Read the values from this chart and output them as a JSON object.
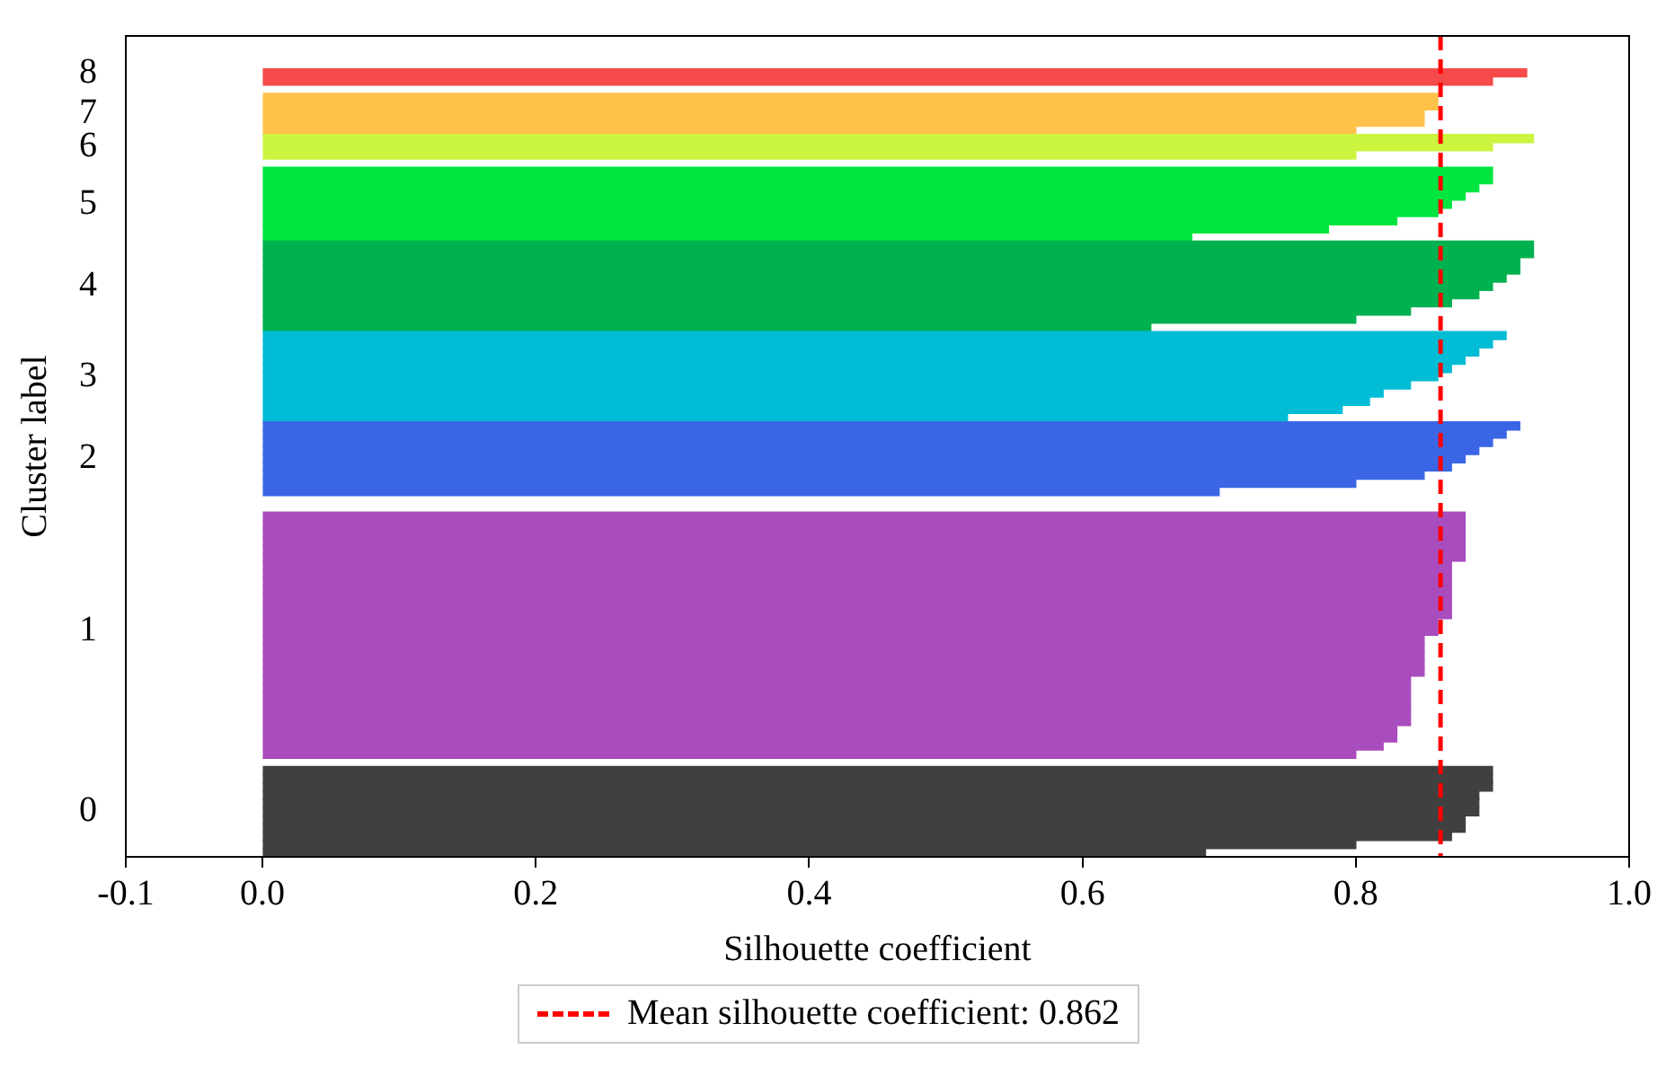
{
  "chart_data": {
    "type": "bar",
    "orientation": "horizontal",
    "xlabel": "Silhouette coefficient",
    "ylabel": "Cluster label",
    "categories": [
      null,
      null,
      null,
      null,
      "8",
      null,
      null,
      null,
      null,
      "7",
      null,
      null,
      null,
      "6",
      null,
      null,
      null,
      null,
      null,
      null,
      "5",
      null,
      null,
      null,
      null,
      null,
      null,
      null,
      null,
      null,
      "4",
      null,
      null,
      null,
      null,
      null,
      null,
      null,
      null,
      null,
      null,
      "3",
      null,
      null,
      null,
      null,
      null,
      null,
      null,
      null,
      null,
      "2",
      null,
      null,
      null,
      null,
      null,
      null,
      null,
      null,
      null,
      null,
      null,
      null,
      null,
      null,
      null,
      null,
      null,
      null,
      null,
      null,
      "1",
      null,
      null,
      null,
      null,
      null,
      null,
      null,
      null,
      null,
      null,
      null,
      null,
      null,
      null,
      null,
      null,
      null,
      null,
      null,
      null,
      null,
      "0",
      null,
      null,
      null,
      null,
      null
    ],
    "values": [
      null,
      null,
      null,
      null,
      0.925,
      0.9,
      null,
      0.86,
      0.86,
      0.85,
      0.85,
      0.8,
      0.93,
      0.9,
      0.8,
      null,
      0.9,
      0.9,
      0.89,
      0.88,
      0.87,
      0.86,
      0.83,
      0.78,
      0.68,
      0.93,
      0.93,
      0.92,
      0.92,
      0.91,
      0.9,
      0.89,
      0.87,
      0.84,
      0.8,
      0.65,
      0.91,
      0.9,
      0.89,
      0.88,
      0.87,
      0.86,
      0.84,
      0.82,
      0.81,
      0.79,
      0.75,
      0.92,
      0.91,
      0.9,
      0.89,
      0.88,
      0.87,
      0.85,
      0.8,
      0.7,
      null,
      null,
      0.88,
      0.88,
      0.88,
      0.88,
      0.88,
      0.88,
      0.87,
      0.87,
      0.87,
      0.87,
      0.87,
      0.87,
      0.87,
      0.86,
      0.86,
      0.85,
      0.85,
      0.85,
      0.85,
      0.85,
      0.84,
      0.84,
      0.84,
      0.84,
      0.84,
      0.84,
      0.83,
      0.83,
      0.82,
      0.8,
      null,
      0.9,
      0.9,
      0.9,
      0.89,
      0.89,
      0.89,
      0.88,
      0.88,
      0.87,
      0.8,
      0.69
    ],
    "colors": [
      "#f54a4a",
      "#f54a4a",
      "#f54a4a",
      "#f54a4a",
      "#f54a4a",
      "#f54a4a",
      "#ffc14a",
      "#ffc14a",
      "#ffc14a",
      "#ffc14a",
      "#ffc14a",
      "#ffc14a",
      "#ccf540",
      "#ccf540",
      "#ccf540",
      "#ccf540",
      "#00e540",
      "#00e540",
      "#00e540",
      "#00e540",
      "#00e540",
      "#00e540",
      "#00e540",
      "#00e540",
      "#00e540",
      "#00b14f",
      "#00b14f",
      "#00b14f",
      "#00b14f",
      "#00b14f",
      "#00b14f",
      "#00b14f",
      "#00b14f",
      "#00b14f",
      "#00b14f",
      "#00b14f",
      "#00bcd4",
      "#00bcd4",
      "#00bcd4",
      "#00bcd4",
      "#00bcd4",
      "#00bcd4",
      "#00bcd4",
      "#00bcd4",
      "#00bcd4",
      "#00bcd4",
      "#00bcd4",
      "#3a66e6",
      "#3a66e6",
      "#3a66e6",
      "#3a66e6",
      "#3a66e6",
      "#3a66e6",
      "#3a66e6",
      "#3a66e6",
      "#3a66e6",
      "#3a66e6",
      "#3a66e6",
      "#a94cbd",
      "#a94cbd",
      "#a94cbd",
      "#a94cbd",
      "#a94cbd",
      "#a94cbd",
      "#a94cbd",
      "#a94cbd",
      "#a94cbd",
      "#a94cbd",
      "#a94cbd",
      "#a94cbd",
      "#a94cbd",
      "#a94cbd",
      "#a94cbd",
      "#a94cbd",
      "#a94cbd",
      "#a94cbd",
      "#a94cbd",
      "#a94cbd",
      "#a94cbd",
      "#a94cbd",
      "#a94cbd",
      "#a94cbd",
      "#a94cbd",
      "#a94cbd",
      "#a94cbd",
      "#a94cbd",
      "#a94cbd",
      "#a94cbd",
      "#a94cbd",
      "#404040",
      "#404040",
      "#404040",
      "#404040",
      "#404040",
      "#404040",
      "#404040",
      "#404040",
      "#404040",
      "#404040",
      "#404040"
    ],
    "xlim": [
      -0.1,
      1.0
    ],
    "xticks": [
      -0.1,
      {
        "value": 0,
        "label": "0.0"
      },
      0.2,
      0.4,
      0.6,
      0.8,
      {
        "value": 1,
        "label": "1.0"
      }
    ],
    "ref_lines": [
      {
        "axis": "x",
        "value": 0.862,
        "label": "Mean silhouette coefficient: 0.862",
        "color": "#ff0000",
        "line_style": "dashed"
      }
    ],
    "legend": "bottom",
    "grid": false
  }
}
